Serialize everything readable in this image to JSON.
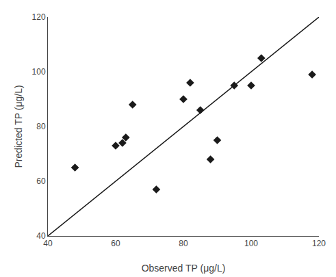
{
  "chart_data": {
    "type": "scatter",
    "xlabel": "Observed TP (μg/L)",
    "ylabel": "Predicted TP (μg/L)",
    "series": [
      {
        "type": "line",
        "x": [
          40,
          120
        ],
        "values": [
          40,
          120
        ],
        "color": "#1a1a1a",
        "line_style": "solid"
      },
      {
        "type": "scatter",
        "x": [
          48,
          60,
          62,
          63,
          65,
          72,
          80,
          82,
          85,
          88,
          90,
          95,
          100,
          103,
          118
        ],
        "values": [
          65,
          73,
          74,
          76,
          88,
          57,
          90,
          96,
          86,
          68,
          75,
          95,
          95,
          105,
          99
        ],
        "color": "#1a1a1a",
        "marker": "diamond"
      }
    ],
    "xlim": [
      40,
      120
    ],
    "ylim": [
      40,
      120
    ],
    "xticks": [
      40,
      60,
      80,
      100,
      120
    ],
    "yticks": [
      40,
      60,
      80,
      100,
      120
    ],
    "grid": false
  }
}
